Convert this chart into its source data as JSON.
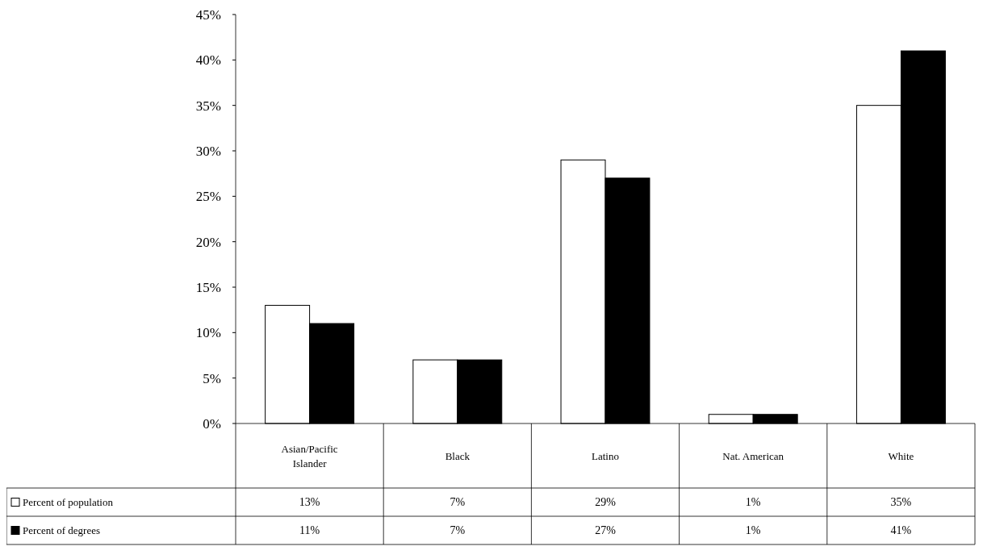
{
  "chart_data": {
    "type": "bar",
    "categories": [
      "Asian/Pacific Islander",
      "Black",
      "Latino",
      "Nat. American",
      "White"
    ],
    "series": [
      {
        "name": "Percent of population",
        "color": "#ffffff",
        "values": [
          13,
          7,
          29,
          1,
          35
        ],
        "value_labels": [
          "13%",
          "7%",
          "29%",
          "1%",
          "35%"
        ]
      },
      {
        "name": "Percent of degrees",
        "color": "#000000",
        "values": [
          11,
          7,
          27,
          1,
          41
        ],
        "value_labels": [
          "11%",
          "7%",
          "27%",
          "1%",
          "41%"
        ]
      }
    ],
    "ylim": [
      0,
      45
    ],
    "yticks": [
      {
        "value": 0,
        "label": "0%"
      },
      {
        "value": 5,
        "label": "5%"
      },
      {
        "value": 10,
        "label": "10%"
      },
      {
        "value": 15,
        "label": "15%"
      },
      {
        "value": 20,
        "label": "20%"
      },
      {
        "value": 25,
        "label": "25%"
      },
      {
        "value": 30,
        "label": "30%"
      },
      {
        "value": 35,
        "label": "35%"
      },
      {
        "value": 40,
        "label": "40%"
      },
      {
        "value": 45,
        "label": "45%"
      }
    ],
    "grid": false,
    "legend": "bottom"
  }
}
